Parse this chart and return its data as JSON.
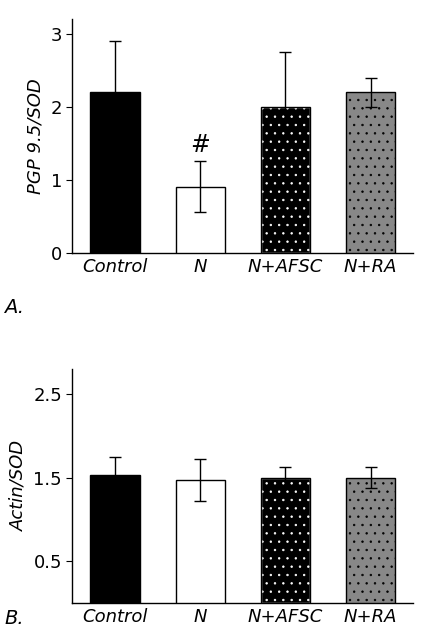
{
  "panel_A": {
    "categories": [
      "Control",
      "N",
      "N+AFSC",
      "N+RA"
    ],
    "values": [
      2.2,
      0.9,
      2.0,
      2.2
    ],
    "errors": [
      0.7,
      0.35,
      0.75,
      0.2
    ],
    "ylabel": "PGP 9.5/SOD",
    "ylim": [
      0,
      3.2
    ],
    "yticks": [
      0,
      1,
      2,
      3
    ],
    "label": "A.",
    "annotation": {
      "bar_index": 1,
      "text": "#",
      "fontsize": 17
    },
    "bar_styles": [
      "solid_black",
      "solid_white",
      "dot_black",
      "dot_gray"
    ],
    "bar_edgecolor": "black"
  },
  "panel_B": {
    "categories": [
      "Control",
      "N",
      "N+AFSC",
      "N+RA"
    ],
    "values": [
      1.53,
      1.47,
      1.5,
      1.5
    ],
    "errors": [
      0.22,
      0.25,
      0.13,
      0.13
    ],
    "ylabel": "Actin/SOD",
    "ylim": [
      0,
      2.8
    ],
    "yticks": [
      0.5,
      1.5,
      2.5
    ],
    "label": "B.",
    "annotation": null,
    "bar_styles": [
      "solid_black",
      "solid_white",
      "dot_black",
      "dot_gray"
    ],
    "bar_edgecolor": "black"
  },
  "tick_label_fontsize": 13,
  "axis_label_fontsize": 13,
  "label_fontsize": 14,
  "bar_width": 0.58,
  "capsize": 4
}
